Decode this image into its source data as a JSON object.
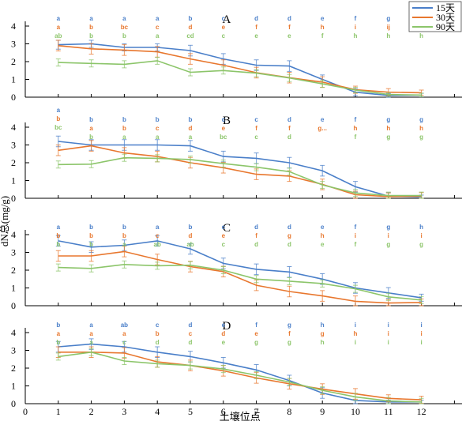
{
  "chart_data": {
    "type": "line",
    "x": [
      1,
      2,
      3,
      4,
      5,
      6,
      7,
      8,
      9,
      10,
      11,
      12
    ],
    "xlabel": "土壤位点",
    "ylabel": "dN总(mg/g)",
    "xticks": [
      "0",
      "1",
      "2",
      "3",
      "4",
      "5",
      "6",
      "7",
      "8",
      "9",
      "10",
      "11",
      "12"
    ],
    "xlim": [
      0,
      13
    ],
    "ylim": [
      0,
      4
    ],
    "yticks": [
      "0",
      "1",
      "2",
      "3",
      "4"
    ],
    "legend": {
      "position": "top-right",
      "entries": [
        "15天",
        "30天",
        "90天"
      ]
    },
    "colors": {
      "15天": "#4a7fc9",
      "30天": "#e8772e",
      "90天": "#8cc56a"
    },
    "panels": [
      {
        "label": "A",
        "series": [
          {
            "name": "15天",
            "values": [
              2.95,
              3.0,
              2.8,
              2.8,
              2.62,
              2.15,
              1.8,
              1.75,
              1.0,
              0.28,
              0.1,
              0.12
            ],
            "errors": [
              0.25,
              0.2,
              0.2,
              0.2,
              0.3,
              0.3,
              0.3,
              0.3,
              0.25,
              0.2,
              0.1,
              0.1
            ]
          },
          {
            "name": "30天",
            "values": [
              2.9,
              2.72,
              2.65,
              2.55,
              2.15,
              1.8,
              1.38,
              1.1,
              0.85,
              0.42,
              0.28,
              0.25
            ],
            "errors": [
              0.3,
              0.3,
              0.3,
              0.3,
              0.3,
              0.3,
              0.3,
              0.3,
              0.3,
              0.2,
              0.2,
              0.15
            ]
          },
          {
            "name": "90天",
            "values": [
              1.95,
              1.9,
              1.85,
              2.05,
              1.4,
              1.5,
              1.35,
              1.08,
              0.75,
              0.4,
              0.15,
              0.12
            ],
            "errors": [
              0.2,
              0.2,
              0.2,
              0.2,
              0.2,
              0.2,
              0.2,
              0.2,
              0.2,
              0.15,
              0.1,
              0.1
            ]
          }
        ],
        "letters": [
          [
            "a",
            "a",
            "a",
            "a",
            "b",
            "c",
            "d",
            "d",
            "e",
            "f",
            "g",
            "g"
          ],
          [
            "a",
            "b",
            "bc",
            "c",
            "d",
            "e",
            "f",
            "f",
            "h",
            "i",
            "ij",
            "j"
          ],
          [
            "ab",
            "b",
            "b",
            "a",
            "cd",
            "c",
            "e",
            "e",
            "f",
            "h",
            "h",
            "h"
          ]
        ]
      },
      {
        "label": "B",
        "series": [
          {
            "name": "15天",
            "values": [
              3.2,
              3.0,
              3.0,
              3.0,
              2.95,
              2.35,
              2.25,
              2.0,
              1.55,
              0.65,
              0.12,
              0.08
            ],
            "errors": [
              0.3,
              0.3,
              0.3,
              0.3,
              0.3,
              0.3,
              0.3,
              0.3,
              0.3,
              0.3,
              0.2,
              0.1
            ]
          },
          {
            "name": "30天",
            "values": [
              2.7,
              2.95,
              2.55,
              2.35,
              2.0,
              1.72,
              1.35,
              1.25,
              0.78,
              0.2,
              0.1,
              0.12
            ],
            "errors": [
              0.3,
              0.3,
              0.3,
              0.3,
              0.3,
              0.3,
              0.3,
              0.3,
              0.3,
              0.2,
              0.2,
              0.2
            ]
          },
          {
            "name": "90天",
            "values": [
              1.9,
              1.92,
              2.28,
              2.25,
              2.18,
              1.95,
              1.75,
              1.5,
              0.75,
              0.3,
              0.15,
              0.15
            ],
            "errors": [
              0.2,
              0.2,
              0.2,
              0.2,
              0.2,
              0.2,
              0.2,
              0.2,
              0.2,
              0.2,
              0.2,
              0.2
            ]
          }
        ],
        "letters": [
          [
            "a",
            "b",
            "b",
            "b",
            "b",
            "c",
            "c",
            "d",
            "e",
            "f",
            "g",
            "g"
          ],
          [
            "b",
            "a",
            "b",
            "c",
            "d",
            "e",
            "f",
            "f",
            "g...",
            "h",
            "h",
            "h"
          ],
          [
            "bc",
            "b",
            "a",
            "a",
            "a",
            "bc",
            "c",
            "d",
            "",
            "f",
            "g",
            "g"
          ]
        ]
      },
      {
        "label": "C",
        "series": [
          {
            "name": "15天",
            "values": [
              3.65,
              3.3,
              3.4,
              3.65,
              3.2,
              2.38,
              2.05,
              1.9,
              1.5,
              1.0,
              0.72,
              0.45
            ],
            "errors": [
              0.3,
              0.3,
              0.3,
              0.3,
              0.3,
              0.3,
              0.3,
              0.3,
              0.3,
              0.3,
              0.3,
              0.2
            ]
          },
          {
            "name": "30天",
            "values": [
              2.8,
              2.8,
              3.05,
              2.6,
              2.2,
              1.92,
              1.15,
              0.8,
              0.55,
              0.25,
              0.15,
              0.18
            ],
            "errors": [
              0.3,
              0.3,
              0.3,
              0.3,
              0.3,
              0.3,
              0.3,
              0.3,
              0.3,
              0.3,
              0.2,
              0.2
            ]
          },
          {
            "name": "90天",
            "values": [
              2.15,
              2.1,
              2.32,
              2.25,
              2.28,
              2.0,
              1.5,
              1.38,
              1.25,
              0.95,
              0.5,
              0.32
            ],
            "errors": [
              0.2,
              0.2,
              0.2,
              0.2,
              0.2,
              0.2,
              0.2,
              0.2,
              0.2,
              0.2,
              0.2,
              0.2
            ]
          }
        ],
        "letters": [
          [
            "a",
            "b",
            "b",
            "a",
            "b",
            "c",
            "d",
            "d",
            "e",
            "f",
            "g",
            "h"
          ],
          [
            "b",
            "b",
            "b",
            "c",
            "d",
            "e",
            "f",
            "g",
            "h",
            "i",
            "i",
            "i"
          ],
          [
            "b",
            "b",
            "a",
            "ab",
            "ab",
            "c",
            "d",
            "d",
            "e",
            "f",
            "g",
            "g"
          ]
        ]
      },
      {
        "label": "D",
        "series": [
          {
            "name": "15天",
            "values": [
              3.2,
              3.35,
              3.2,
              2.9,
              2.65,
              2.3,
              1.9,
              1.3,
              0.6,
              0.18,
              0.1,
              0.1
            ],
            "errors": [
              0.3,
              0.3,
              0.3,
              0.3,
              0.3,
              0.3,
              0.3,
              0.3,
              0.3,
              0.2,
              0.1,
              0.1
            ]
          },
          {
            "name": "30天",
            "values": [
              2.9,
              2.9,
              2.85,
              2.35,
              2.15,
              1.85,
              1.45,
              1.12,
              0.82,
              0.55,
              0.3,
              0.22
            ],
            "errors": [
              0.3,
              0.3,
              0.3,
              0.3,
              0.3,
              0.3,
              0.3,
              0.3,
              0.3,
              0.3,
              0.2,
              0.2
            ]
          },
          {
            "name": "90天",
            "values": [
              2.65,
              2.9,
              2.4,
              2.25,
              2.15,
              1.95,
              1.6,
              1.22,
              0.75,
              0.38,
              0.15,
              0.1
            ],
            "errors": [
              0.2,
              0.2,
              0.2,
              0.2,
              0.2,
              0.2,
              0.2,
              0.2,
              0.2,
              0.2,
              0.2,
              0.2
            ]
          }
        ],
        "letters": [
          [
            "b",
            "a",
            "ab",
            "c",
            "d",
            "e",
            "f",
            "g",
            "h",
            "i",
            "i",
            "i"
          ],
          [
            "a",
            "a",
            "a",
            "b",
            "c",
            "d",
            "e",
            "f",
            "g",
            "h",
            "i",
            "i"
          ],
          [
            "b",
            "a",
            "c",
            "d",
            "d",
            "e",
            "g",
            "g",
            "h",
            "i",
            "i",
            "i"
          ]
        ]
      }
    ]
  }
}
